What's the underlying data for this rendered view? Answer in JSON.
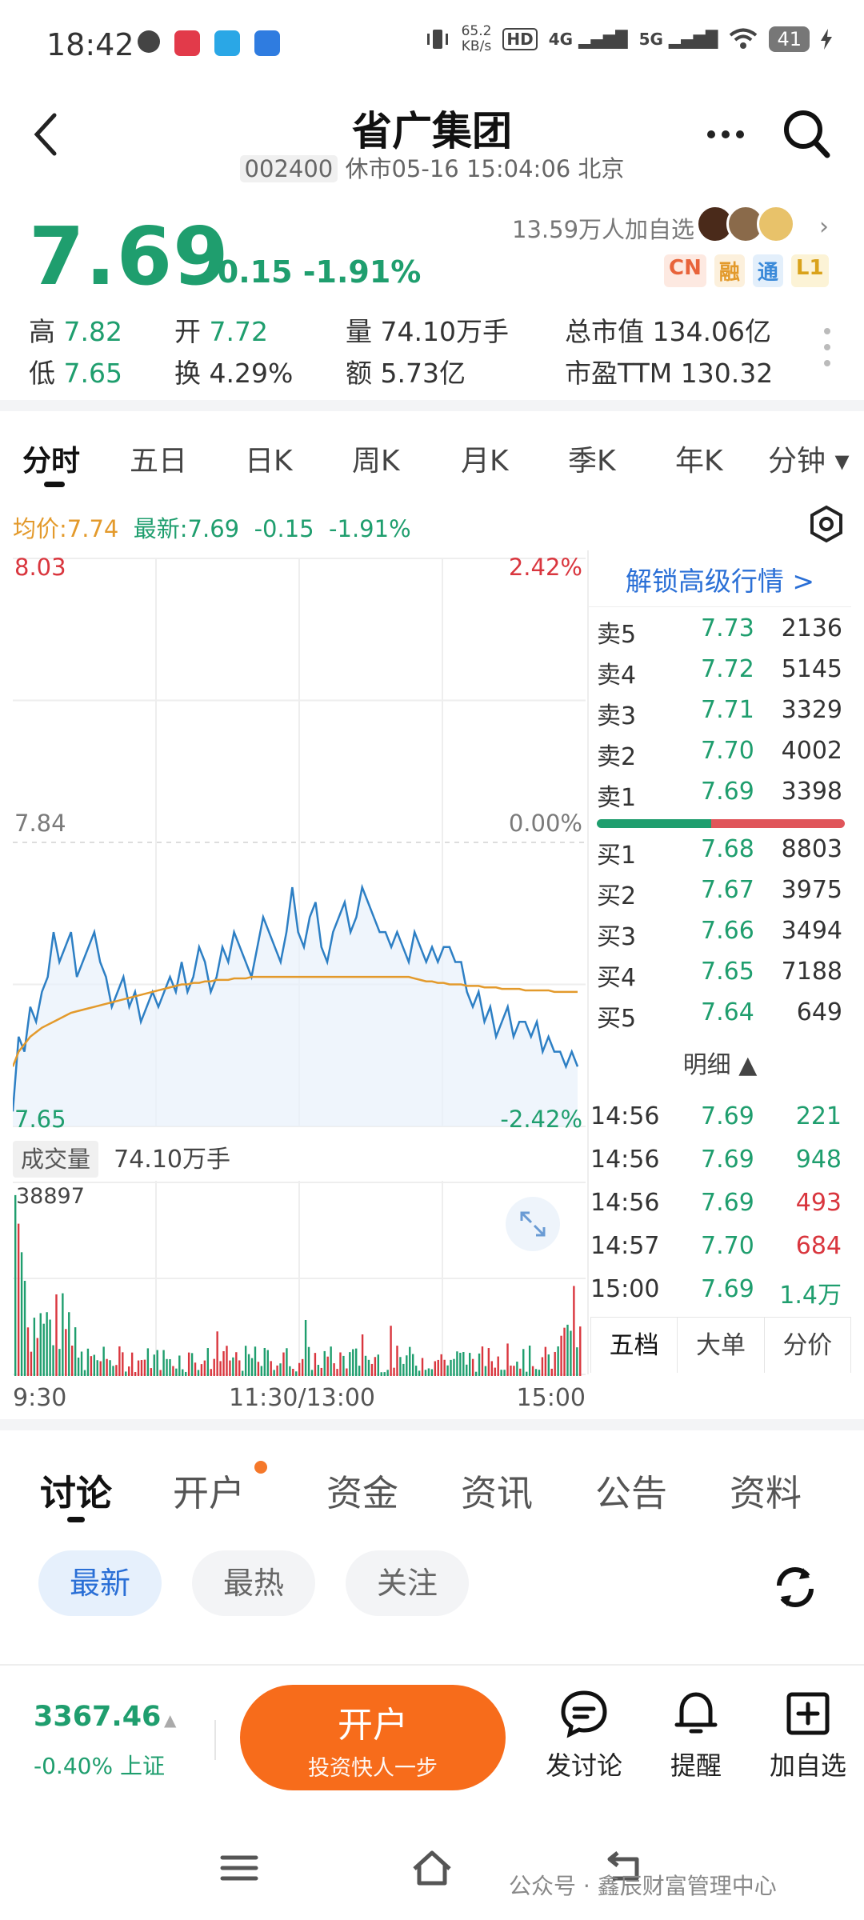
{
  "status": {
    "time": "18:42",
    "net_speed_top": "65.2",
    "net_speed_unit": "KB/s",
    "hd": "HD",
    "sig1": "4G",
    "sig2": "5G",
    "battery": "41"
  },
  "header": {
    "title": "省广集团",
    "code": "002400",
    "market_status": "休市05-16 15:04:06 北京"
  },
  "quote": {
    "price": "7.69",
    "change": "-0.15 -1.91%",
    "followers": "13.59万人加自选",
    "tags": [
      {
        "label": "CN",
        "color": "#e8633a",
        "bg": "#fde9e1"
      },
      {
        "label": "融",
        "color": "#e39a2c",
        "bg": "#fcf0dc"
      },
      {
        "label": "通",
        "color": "#3b8ad9",
        "bg": "#e3effb"
      },
      {
        "label": "L1",
        "color": "#d9a21b",
        "bg": "#fcf3d6"
      }
    ],
    "stats": {
      "high_label": "高",
      "high": "7.82",
      "open_label": "开",
      "open": "7.72",
      "vol_label": "量",
      "vol": "74.10万手",
      "mcap_label": "总市值",
      "mcap": "134.06亿",
      "low_label": "低",
      "low": "7.65",
      "turn_label": "换",
      "turn": "4.29%",
      "amt_label": "额",
      "amt": "5.73亿",
      "pe_label": "市盈TTM",
      "pe": "130.32"
    }
  },
  "period_tabs": [
    "分时",
    "五日",
    "日K",
    "周K",
    "月K",
    "季K",
    "年K",
    "分钟"
  ],
  "period_active": "分时",
  "chart_header": {
    "avg_label": "均价:7.74",
    "last_label": "最新:7.69",
    "chg": "-0.15",
    "pct": "-1.91%"
  },
  "chart_data": {
    "type": "line",
    "y_left_top": "8.03",
    "y_left_mid": "7.84",
    "y_left_bottom": "7.65",
    "y_right_top": "2.42%",
    "y_right_mid": "0.00%",
    "y_right_bottom": "-2.42%",
    "ylim": [
      7.65,
      8.03
    ],
    "x_labels": [
      "9:30",
      "11:30/13:00",
      "15:00"
    ],
    "price_series": [
      7.66,
      7.71,
      7.7,
      7.73,
      7.72,
      7.74,
      7.75,
      7.78,
      7.76,
      7.77,
      7.78,
      7.75,
      7.76,
      7.77,
      7.78,
      7.76,
      7.75,
      7.73,
      7.74,
      7.75,
      7.73,
      7.74,
      7.72,
      7.73,
      7.74,
      7.73,
      7.74,
      7.75,
      7.74,
      7.76,
      7.74,
      7.75,
      7.77,
      7.76,
      7.74,
      7.75,
      7.77,
      7.76,
      7.78,
      7.77,
      7.76,
      7.75,
      7.77,
      7.79,
      7.78,
      7.77,
      7.76,
      7.78,
      7.81,
      7.78,
      7.77,
      7.79,
      7.8,
      7.77,
      7.76,
      7.78,
      7.79,
      7.8,
      7.78,
      7.79,
      7.81,
      7.8,
      7.79,
      7.78,
      7.78,
      7.77,
      7.78,
      7.77,
      7.76,
      7.78,
      7.77,
      7.76,
      7.77,
      7.76,
      7.77,
      7.77,
      7.76,
      7.76,
      7.74,
      7.73,
      7.74,
      7.72,
      7.73,
      7.71,
      7.72,
      7.73,
      7.71,
      7.72,
      7.72,
      7.71,
      7.72,
      7.7,
      7.71,
      7.7,
      7.7,
      7.69,
      7.7,
      7.69
    ],
    "avg_series": [
      7.69,
      7.7,
      7.705,
      7.71,
      7.713,
      7.716,
      7.718,
      7.72,
      7.722,
      7.724,
      7.726,
      7.727,
      7.728,
      7.729,
      7.73,
      7.731,
      7.732,
      7.733,
      7.734,
      7.735,
      7.736,
      7.737,
      7.738,
      7.739,
      7.74,
      7.741,
      7.742,
      7.743,
      7.744,
      7.745,
      7.745,
      7.746,
      7.746,
      7.747,
      7.747,
      7.748,
      7.748,
      7.748,
      7.749,
      7.749,
      7.749,
      7.75,
      7.75,
      7.75,
      7.75,
      7.75,
      7.75,
      7.75,
      7.75,
      7.75,
      7.75,
      7.75,
      7.75,
      7.75,
      7.75,
      7.75,
      7.75,
      7.75,
      7.75,
      7.75,
      7.75,
      7.75,
      7.75,
      7.75,
      7.75,
      7.75,
      7.75,
      7.75,
      7.75,
      7.749,
      7.748,
      7.747,
      7.747,
      7.746,
      7.746,
      7.745,
      7.745,
      7.745,
      7.744,
      7.744,
      7.744,
      7.743,
      7.743,
      7.743,
      7.742,
      7.742,
      7.742,
      7.742,
      7.741,
      7.741,
      7.741,
      7.741,
      7.741,
      7.74,
      7.74,
      7.74,
      7.74,
      7.74
    ],
    "volume_label": "成交量",
    "volume_total": "74.10万手",
    "volume_max": "38897"
  },
  "orderbook": {
    "unlock": "解锁高级行情 >",
    "asks": [
      {
        "k": "卖5",
        "p": "7.73",
        "v": "2136"
      },
      {
        "k": "卖4",
        "p": "7.72",
        "v": "5145"
      },
      {
        "k": "卖3",
        "p": "7.71",
        "v": "3329"
      },
      {
        "k": "卖2",
        "p": "7.70",
        "v": "4002"
      },
      {
        "k": "卖1",
        "p": "7.69",
        "v": "3398"
      }
    ],
    "bids": [
      {
        "k": "买1",
        "p": "7.68",
        "v": "8803"
      },
      {
        "k": "买2",
        "p": "7.67",
        "v": "3975"
      },
      {
        "k": "买3",
        "p": "7.66",
        "v": "3494"
      },
      {
        "k": "买4",
        "p": "7.65",
        "v": "7188"
      },
      {
        "k": "买5",
        "p": "7.64",
        "v": "649"
      }
    ],
    "detail_label": "明细 ▲",
    "trades": [
      {
        "t": "14:56",
        "p": "7.69",
        "v": "221",
        "side": "green"
      },
      {
        "t": "14:56",
        "p": "7.69",
        "v": "948",
        "side": "green"
      },
      {
        "t": "14:56",
        "p": "7.69",
        "v": "493",
        "side": "red"
      },
      {
        "t": "14:57",
        "p": "7.70",
        "v": "684",
        "side": "red"
      },
      {
        "t": "15:00",
        "p": "7.69",
        "v": "1.4万",
        "side": "green"
      }
    ],
    "tabs": [
      "五档",
      "大单",
      "分价"
    ]
  },
  "bottom_tabs": [
    "讨论",
    "开户",
    "资金",
    "资讯",
    "公告",
    "资料"
  ],
  "pills": [
    "最新",
    "最热",
    "关注"
  ],
  "bottom_bar": {
    "index_value": "3367.46",
    "index_change": "-0.40% 上证",
    "open_btn_title": "开户",
    "open_btn_sub": "投资快人一步",
    "act_discuss": "发讨论",
    "act_remind": "提醒",
    "act_watch": "加自选"
  },
  "watermark": "公众号 · 鑫辰财富管理中心"
}
